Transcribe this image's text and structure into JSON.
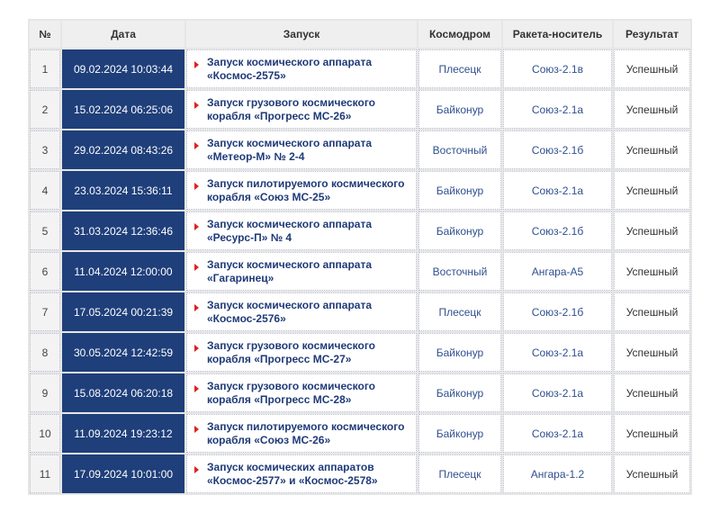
{
  "headers": [
    "№",
    "Дата",
    "Запуск",
    "Космодром",
    "Ракета-носитель",
    "Результат"
  ],
  "rows": [
    {
      "n": "1",
      "date": "09.02.2024 10:03:44",
      "launch": "Запуск космического аппарата «Космос-2575»",
      "site": "Плесецк",
      "rocket": "Союз-2.1в",
      "result": "Успешный"
    },
    {
      "n": "2",
      "date": "15.02.2024 06:25:06",
      "launch": "Запуск грузового космического корабля «Прогресс МС-26»",
      "site": "Байконур",
      "rocket": "Союз-2.1а",
      "result": "Успешный"
    },
    {
      "n": "3",
      "date": "29.02.2024 08:43:26",
      "launch": "Запуск космического аппарата «Метеор-М» № 2-4",
      "site": "Восточный",
      "rocket": "Союз-2.1б",
      "result": "Успешный"
    },
    {
      "n": "4",
      "date": "23.03.2024 15:36:11",
      "launch": "Запуск пилотируемого космического корабля «Союз МС-25»",
      "site": "Байконур",
      "rocket": "Союз-2.1а",
      "result": "Успешный"
    },
    {
      "n": "5",
      "date": "31.03.2024 12:36:46",
      "launch": "Запуск космического аппарата «Ресурс-П» № 4",
      "site": "Байконур",
      "rocket": "Союз-2.1б",
      "result": "Успешный"
    },
    {
      "n": "6",
      "date": "11.04.2024 12:00:00",
      "launch": "Запуск космического аппарата «Гагаринец»",
      "site": "Восточный",
      "rocket": "Ангара-А5",
      "result": "Успешный"
    },
    {
      "n": "7",
      "date": "17.05.2024 00:21:39",
      "launch": "Запуск космического аппарата «Космос-2576»",
      "site": "Плесецк",
      "rocket": "Союз-2.1б",
      "result": "Успешный"
    },
    {
      "n": "8",
      "date": "30.05.2024 12:42:59",
      "launch": "Запуск грузового космического корабля «Прогресс МС-27»",
      "site": "Байконур",
      "rocket": "Союз-2.1а",
      "result": "Успешный"
    },
    {
      "n": "9",
      "date": "15.08.2024 06:20:18",
      "launch": "Запуск грузового космического корабля «Прогресс МС-28»",
      "site": "Байконур",
      "rocket": "Союз-2.1а",
      "result": "Успешный"
    },
    {
      "n": "10",
      "date": "11.09.2024 19:23:12",
      "launch": "Запуск пилотируемого космического корабля «Союз МС-26»",
      "site": "Байконур",
      "rocket": "Союз-2.1а",
      "result": "Успешный"
    },
    {
      "n": "11",
      "date": "17.09.2024 10:01:00",
      "launch": "Запуск космических аппаратов «Космос-2577» и «Космос-2578»",
      "site": "Плесецк",
      "rocket": "Ангара-1.2",
      "result": "Успешный"
    }
  ]
}
